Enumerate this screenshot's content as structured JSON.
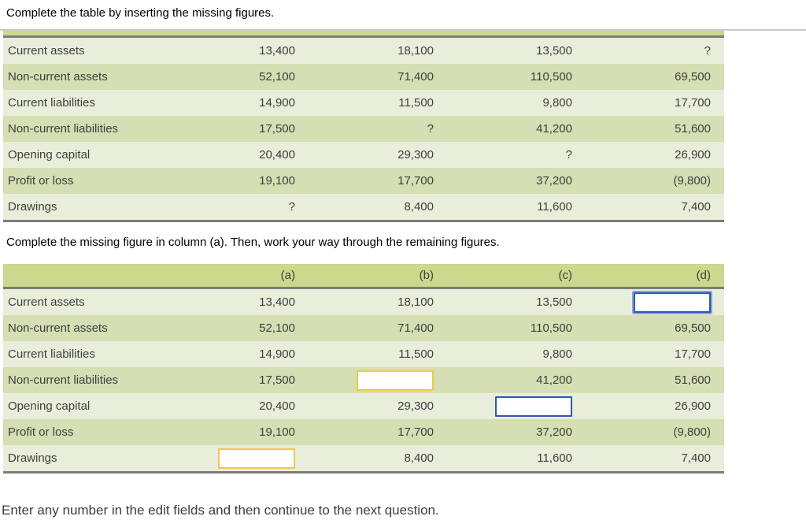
{
  "page": {
    "instruction_top": "Complete the table by inserting the missing figures.",
    "instruction_middle": "Complete the missing figure in column (a). Then, work your way through the remaining figures.",
    "instruction_bottom": "Enter any number in the edit fields and then continue to the next question."
  },
  "colors": {
    "table_header_bg": "#ccd88c",
    "row_light_bg": "#e9eedb",
    "row_dark_bg": "#d5dfb3",
    "table_border": "#7b7b7b",
    "divider": "#c9c9c9",
    "text": "#3e3e3e",
    "input_border_yellow": "#ecc84f",
    "input_border_blue": "#2e58b4"
  },
  "table1": {
    "rows": [
      {
        "label": "Current assets",
        "values": [
          "13,400",
          "18,100",
          "13,500",
          "?"
        ]
      },
      {
        "label": "Non-current assets",
        "values": [
          "52,100",
          "71,400",
          "110,500",
          "69,500"
        ]
      },
      {
        "label": "Current liabilities",
        "values": [
          "14,900",
          "11,500",
          "9,800",
          "17,700"
        ]
      },
      {
        "label": "Non-current liabilities",
        "values": [
          "17,500",
          "?",
          "41,200",
          "51,600"
        ]
      },
      {
        "label": "Opening capital",
        "values": [
          "20,400",
          "29,300",
          "?",
          "26,900"
        ]
      },
      {
        "label": "Profit or loss",
        "values": [
          "19,100",
          "17,700",
          "37,200",
          "(9,800)"
        ]
      },
      {
        "label": "Drawings",
        "values": [
          "?",
          "8,400",
          "11,600",
          "7,400"
        ]
      }
    ]
  },
  "table2": {
    "columns": [
      "(a)",
      "(b)",
      "(c)",
      "(d)"
    ],
    "rows": [
      {
        "label": "Current assets",
        "values": [
          "13,400",
          "18,100",
          "13,500",
          {
            "input": true,
            "value": "",
            "border": "blue",
            "focused": true
          }
        ]
      },
      {
        "label": "Non-current assets",
        "values": [
          "52,100",
          "71,400",
          "110,500",
          "69,500"
        ]
      },
      {
        "label": "Current liabilities",
        "values": [
          "14,900",
          "11,500",
          "9,800",
          "17,700"
        ]
      },
      {
        "label": "Non-current liabilities",
        "values": [
          "17,500",
          {
            "input": true,
            "value": "",
            "border": "yellow"
          },
          "41,200",
          "51,600"
        ]
      },
      {
        "label": "Opening capital",
        "values": [
          "20,400",
          "29,300",
          {
            "input": true,
            "value": "",
            "border": "blue"
          },
          "26,900"
        ]
      },
      {
        "label": "Profit or loss",
        "values": [
          "19,100",
          "17,700",
          "37,200",
          "(9,800)"
        ]
      },
      {
        "label": "Drawings",
        "values": [
          {
            "input": true,
            "value": "",
            "border": "yellow"
          },
          "8,400",
          "11,600",
          "7,400"
        ]
      }
    ]
  }
}
